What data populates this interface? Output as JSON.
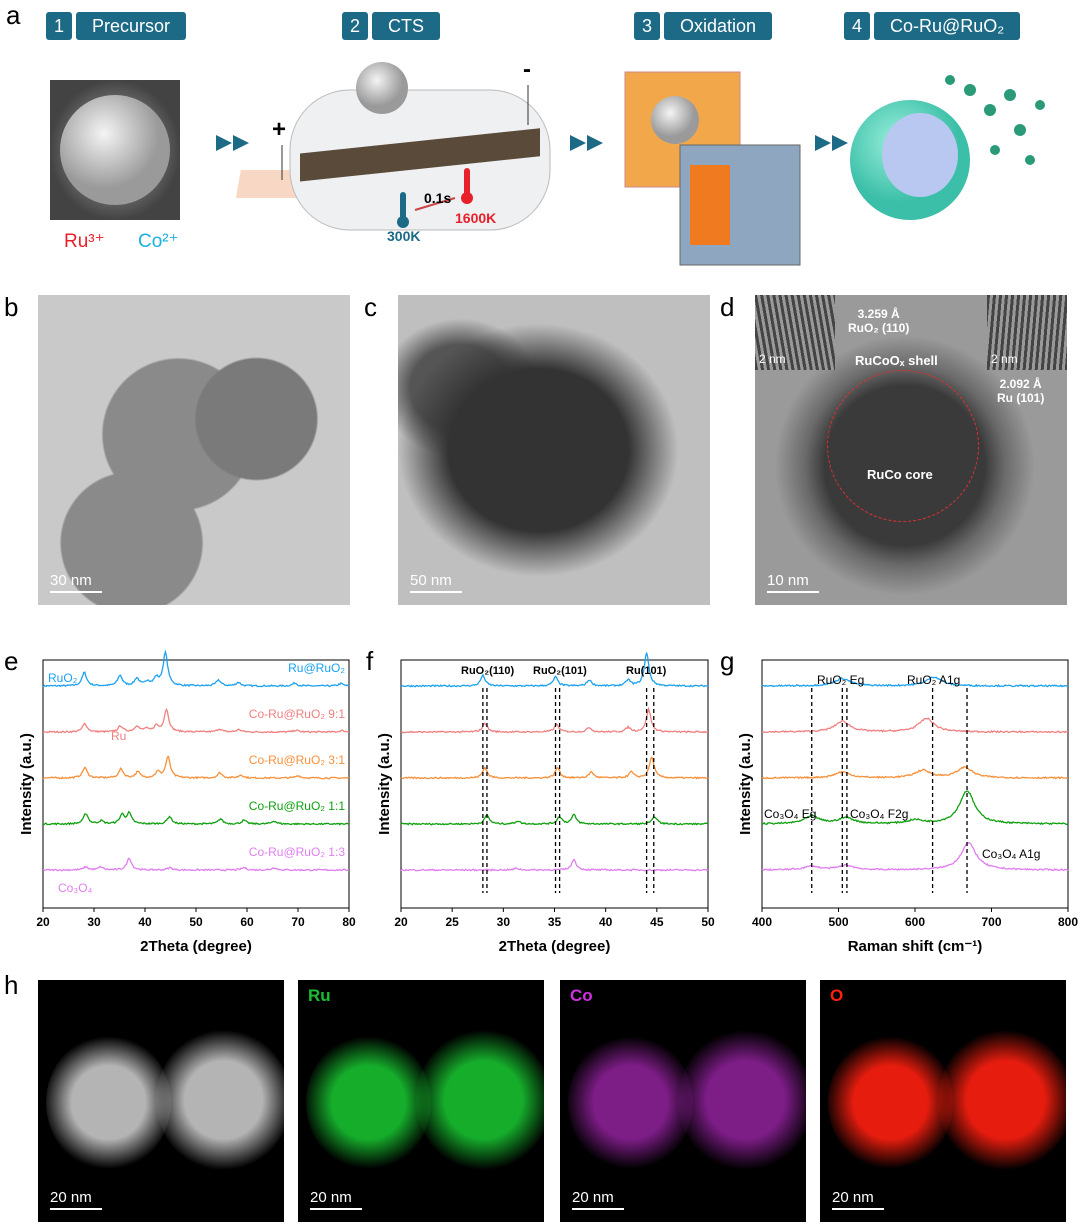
{
  "panel_labels": [
    "a",
    "b",
    "c",
    "d",
    "e",
    "f",
    "g",
    "h"
  ],
  "panel_a": {
    "steps": [
      {
        "num": "1",
        "name": "Precursor"
      },
      {
        "num": "2",
        "name": "CTS"
      },
      {
        "num": "3",
        "name": "Oxidation"
      },
      {
        "num": "4",
        "name": "Co-Ru@RuO₂"
      }
    ],
    "ru_ion": "Ru³⁺",
    "co_ion": "Co²⁺",
    "plus": "+",
    "minus": "-",
    "t_low": "300K",
    "t_high": "1600K",
    "time": "0.1s",
    "colors": {
      "step_box": "#1c6a86",
      "ru": "#e8202a",
      "co": "#1ab0e0"
    }
  },
  "panel_b": {
    "scale": "30 nm"
  },
  "panel_c": {
    "scale": "50 nm"
  },
  "panel_d": {
    "scale": "10 nm",
    "inset_scale_left": "2 nm",
    "inset_scale_right": "2 nm",
    "d1": "3.259 Å",
    "p1": "RuO₂ (110)",
    "d2": "2.092 Å",
    "p2": "Ru (101)",
    "shell": "RuCoOₓ shell",
    "core": "RuCo core"
  },
  "panel_h": {
    "scale": "20 nm",
    "elements": [
      {
        "name": "",
        "color": "#ffffff"
      },
      {
        "name": "Ru",
        "color": "#18c030"
      },
      {
        "name": "Co",
        "color": "#d030e0"
      },
      {
        "name": "O",
        "color": "#ff2010"
      }
    ]
  },
  "chart_data": [
    {
      "type": "line",
      "title": "e",
      "xlabel": "2Theta (degree)",
      "ylabel": "Intensity (a.u.)",
      "xlim": [
        20,
        80
      ],
      "xticks": [
        20,
        30,
        40,
        50,
        60,
        70,
        80
      ],
      "series": [
        {
          "name": "Ru@RuO₂",
          "color": "#1ba1f0",
          "offset": 4,
          "peaks": [
            [
              28.1,
              0.45
            ],
            [
              35.1,
              0.35
            ],
            [
              38.4,
              0.25
            ],
            [
              40.5,
              0.15
            ],
            [
              42.2,
              0.25
            ],
            [
              44.0,
              1.1
            ],
            [
              54.4,
              0.2
            ],
            [
              58.3,
              0.12
            ],
            [
              69.4,
              0.1
            ],
            [
              78.4,
              0.08
            ]
          ]
        },
        {
          "name": "Co-Ru@RuO₂ 9:1",
          "color": "#f08080",
          "offset": 3,
          "peaks": [
            [
              28.2,
              0.28
            ],
            [
              35.2,
              0.2
            ],
            [
              38.4,
              0.2
            ],
            [
              40.2,
              0.1
            ],
            [
              42.2,
              0.2
            ],
            [
              44.2,
              0.75
            ],
            [
              54.6,
              0.1
            ],
            [
              58.4,
              0.08
            ],
            [
              69.6,
              0.06
            ],
            [
              78.6,
              0.05
            ]
          ]
        },
        {
          "name": "Co-Ru@RuO₂ 3:1",
          "color": "#f8903a",
          "offset": 2,
          "peaks": [
            [
              28.2,
              0.35
            ],
            [
              35.3,
              0.3
            ],
            [
              38.6,
              0.2
            ],
            [
              42.5,
              0.2
            ],
            [
              44.5,
              0.7
            ],
            [
              54.7,
              0.17
            ],
            [
              58.8,
              0.1
            ],
            [
              70,
              0.08
            ]
          ]
        },
        {
          "name": "Co-Ru@RuO₂ 1:1",
          "color": "#10a010",
          "offset": 1,
          "peaks": [
            [
              28.4,
              0.35
            ],
            [
              31.4,
              0.1
            ],
            [
              35.5,
              0.3
            ],
            [
              36.9,
              0.35
            ],
            [
              44.8,
              0.25
            ],
            [
              54.8,
              0.17
            ],
            [
              59.4,
              0.12
            ],
            [
              65.3,
              0.1
            ]
          ]
        },
        {
          "name": "Co-Ru@RuO₂ 1:3",
          "color": "#e07ef0",
          "offset": 0,
          "peaks": [
            [
              28.4,
              0.1
            ],
            [
              31.3,
              0.1
            ],
            [
              36.9,
              0.4
            ],
            [
              44.9,
              0.08
            ],
            [
              59.4,
              0.08
            ],
            [
              65.3,
              0.08
            ]
          ]
        }
      ],
      "annotations": [
        "RuO₂",
        "Ru",
        "Co₃O₄"
      ]
    },
    {
      "type": "line",
      "title": "f",
      "xlabel": "2Theta (degree)",
      "ylabel": "Intensity (a.u.)",
      "xlim": [
        20,
        50
      ],
      "xticks": [
        20,
        25,
        30,
        35,
        40,
        45,
        50
      ],
      "series": [
        {
          "name": "Ru@RuO₂",
          "color": "#1ba1f0",
          "offset": 4,
          "peaks": [
            [
              28.0,
              0.35
            ],
            [
              35.1,
              0.3
            ],
            [
              38.4,
              0.2
            ],
            [
              42.2,
              0.2
            ],
            [
              44.0,
              1.1
            ]
          ]
        },
        {
          "name": "Co-Ru@RuO₂ 9:1",
          "color": "#f08080",
          "offset": 3,
          "peaks": [
            [
              28.2,
              0.3
            ],
            [
              35.2,
              0.25
            ],
            [
              38.4,
              0.15
            ],
            [
              42.2,
              0.15
            ],
            [
              44.2,
              0.75
            ]
          ]
        },
        {
          "name": "Co-Ru@RuO₂ 3:1",
          "color": "#f8903a",
          "offset": 2,
          "peaks": [
            [
              28.2,
              0.35
            ],
            [
              35.3,
              0.35
            ],
            [
              38.6,
              0.2
            ],
            [
              42.5,
              0.2
            ],
            [
              44.5,
              0.7
            ]
          ]
        },
        {
          "name": "Co-Ru@RuO₂ 1:1",
          "color": "#10a010",
          "offset": 1,
          "peaks": [
            [
              28.4,
              0.3
            ],
            [
              31.4,
              0.1
            ],
            [
              35.5,
              0.25
            ],
            [
              36.9,
              0.3
            ],
            [
              44.8,
              0.25
            ]
          ]
        },
        {
          "name": "Co-Ru@RuO₂ 1:3",
          "color": "#e07ef0",
          "offset": 0,
          "peaks": [
            [
              31.3,
              0.06
            ],
            [
              36.9,
              0.35
            ]
          ]
        }
      ],
      "annotations": [
        "RuO₂(110)",
        "RuO₂(101)",
        "Ru(101)"
      ],
      "dashed_lines": [
        28.0,
        28.4,
        35.1,
        35.5,
        44.0,
        44.7
      ]
    },
    {
      "type": "line",
      "title": "g",
      "xlabel": "Raman shift (cm⁻¹)",
      "ylabel": "Intensity (a.u.)",
      "xlim": [
        400,
        800
      ],
      "xticks": [
        400,
        500,
        600,
        700,
        800
      ],
      "series": [
        {
          "name": "Ru@RuO₂",
          "color": "#1ba1f0",
          "offset": 4,
          "peaks": [
            [
              505,
              0.25
            ],
            [
              625,
              0.3
            ]
          ]
        },
        {
          "name": "Co-Ru@RuO₂ 9:1",
          "color": "#f08080",
          "offset": 3,
          "peaks": [
            [
              505,
              0.35
            ],
            [
              615,
              0.45
            ]
          ]
        },
        {
          "name": "Co-Ru@RuO₂ 3:1",
          "color": "#f8903a",
          "offset": 2,
          "peaks": [
            [
              505,
              0.2
            ],
            [
              610,
              0.25
            ],
            [
              665,
              0.35
            ]
          ]
        },
        {
          "name": "Co-Ru@RuO₂ 1:1",
          "color": "#10a010",
          "offset": 1,
          "peaks": [
            [
              465,
              0.25
            ],
            [
              510,
              0.2
            ],
            [
              600,
              0.12
            ],
            [
              668,
              1.1
            ]
          ]
        },
        {
          "name": "Co-Ru@RuO₂ 1:3",
          "color": "#e07ef0",
          "offset": 0,
          "peaks": [
            [
              465,
              0.12
            ],
            [
              510,
              0.15
            ],
            [
              670,
              0.9
            ]
          ]
        }
      ],
      "annotations": [
        "RuO₂ E_g",
        "RuO₂ A_1g",
        "Co₃O₄ E_g",
        "Co₃O₄ F_2g",
        "Co₃O₄ A_1g"
      ],
      "dashed_lines": [
        505,
        623,
        465,
        511,
        668
      ]
    }
  ]
}
